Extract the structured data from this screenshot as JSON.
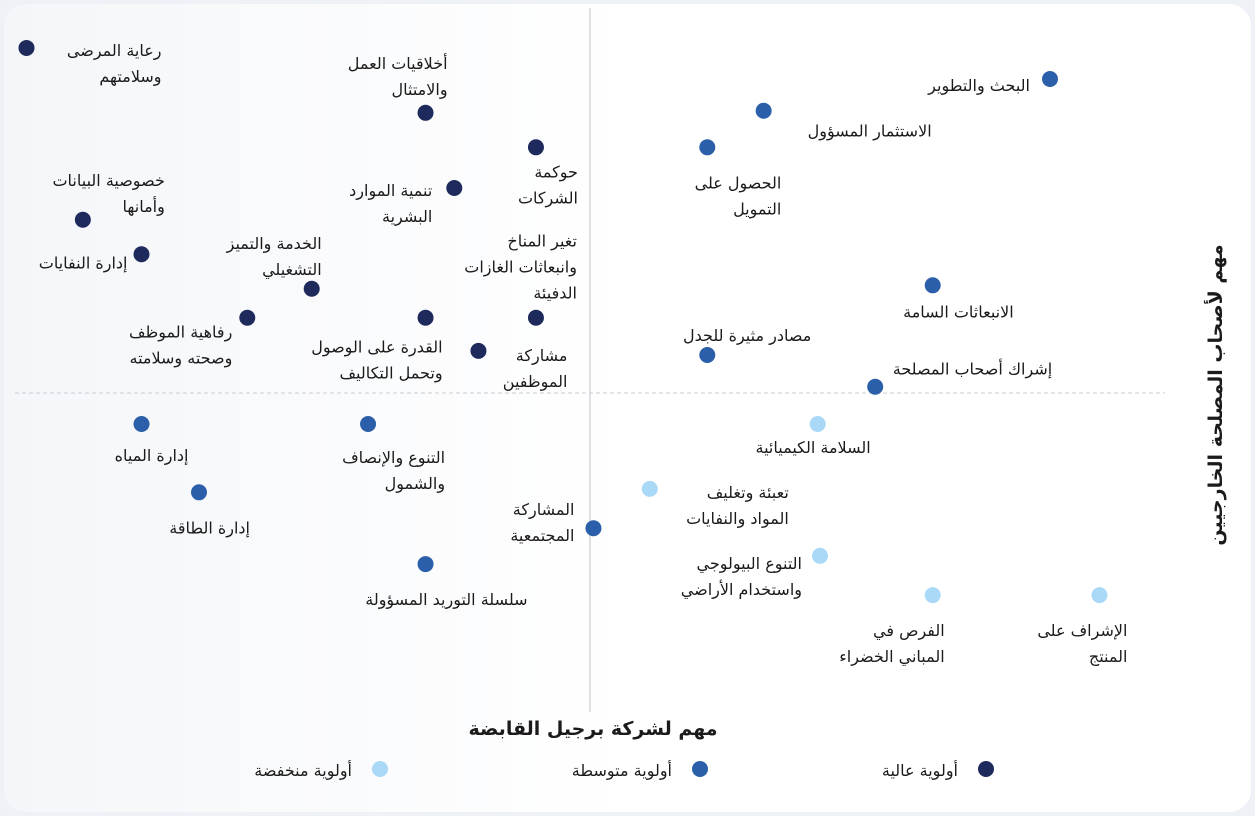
{
  "chart_data": {
    "type": "scatter",
    "xlabel": "مهم لشركة برجيل القابضة",
    "ylabel": "مهم لأصحاب المصلحة الخارجيين",
    "xlim": [
      0,
      10
    ],
    "ylim": [
      0,
      10
    ],
    "quadrant_lines": {
      "x": 5,
      "y": 4.45
    },
    "series": [
      {
        "name": "أولوية عالية",
        "color": "#1f2a5c",
        "x": [
          0.1,
          3.57,
          4.53,
          3.82,
          0.59,
          1.1,
          2.58,
          2.02,
          3.57,
          4.53,
          4.03
        ],
        "values": [
          9.45,
          8.51,
          8.01,
          7.42,
          6.96,
          6.46,
          5.96,
          5.54,
          5.54,
          5.54,
          5.06
        ],
        "labels": [
          [
            "رعاية المرضى",
            "وسلامتهم"
          ],
          [
            "أخلاقيات العمل",
            "والامتثال"
          ],
          [
            "حوكمة",
            "الشركات"
          ],
          [
            "تنمية الموارد",
            "البشرية"
          ],
          [
            "خصوصية البيانات",
            "وأمانها"
          ],
          [
            "إدارة النفايات"
          ],
          [
            "الخدمة والتميز",
            "التشغيلي"
          ],
          [
            "رفاهية الموظف",
            "وصحته وسلامته"
          ],
          [
            "القدرة على الوصول",
            "وتحمل التكاليف"
          ],
          [
            "تغير المناخ",
            "وانبعاثات الغازات",
            "الدفيئة"
          ],
          [
            "مشاركة",
            "الموظفين"
          ]
        ]
      },
      {
        "name": "أولوية متوسطة",
        "color": "#2b5fa9",
        "x": [
          9.0,
          6.51,
          6.02,
          7.98,
          6.02,
          7.48,
          1.1,
          3.07,
          1.6,
          5.03,
          3.57
        ],
        "values": [
          9.0,
          8.54,
          8.01,
          6.01,
          5.0,
          4.54,
          4.0,
          4.0,
          3.01,
          2.49,
          1.97
        ],
        "labels": [
          [
            "البحث والتطوير"
          ],
          [
            "الاستثمار المسؤول"
          ],
          [
            "الحصول على",
            "التمويل"
          ],
          [
            "الانبعاثات السامة"
          ],
          [
            "مصادر مثيرة للجدل"
          ],
          [
            "إشراك أصحاب المصلحة"
          ],
          [
            "إدارة المياه"
          ],
          [
            "التنوع والإنصاف",
            "والشمول"
          ],
          [
            "إدارة الطاقة"
          ],
          [
            "المشاركة",
            "المجتمعية"
          ],
          [
            "سلسلة التوريد المسؤولة"
          ]
        ]
      },
      {
        "name": "أولوية منخفضة",
        "color": "#a9d9f6",
        "x": [
          6.98,
          5.52,
          7.0,
          7.98,
          9.43
        ],
        "values": [
          4.0,
          3.06,
          2.09,
          1.52,
          1.52
        ],
        "labels": [
          [
            "السلامة الكيميائية"
          ],
          [
            "تعبئة وتغليف",
            "المواد والنفايات"
          ],
          [
            "التنوع البيولوجي",
            "واستخدام الأراضي"
          ],
          [
            "الفرص في",
            "المباني الخضراء"
          ],
          [
            "الإشراف على",
            "المنتج"
          ]
        ]
      }
    ]
  }
}
